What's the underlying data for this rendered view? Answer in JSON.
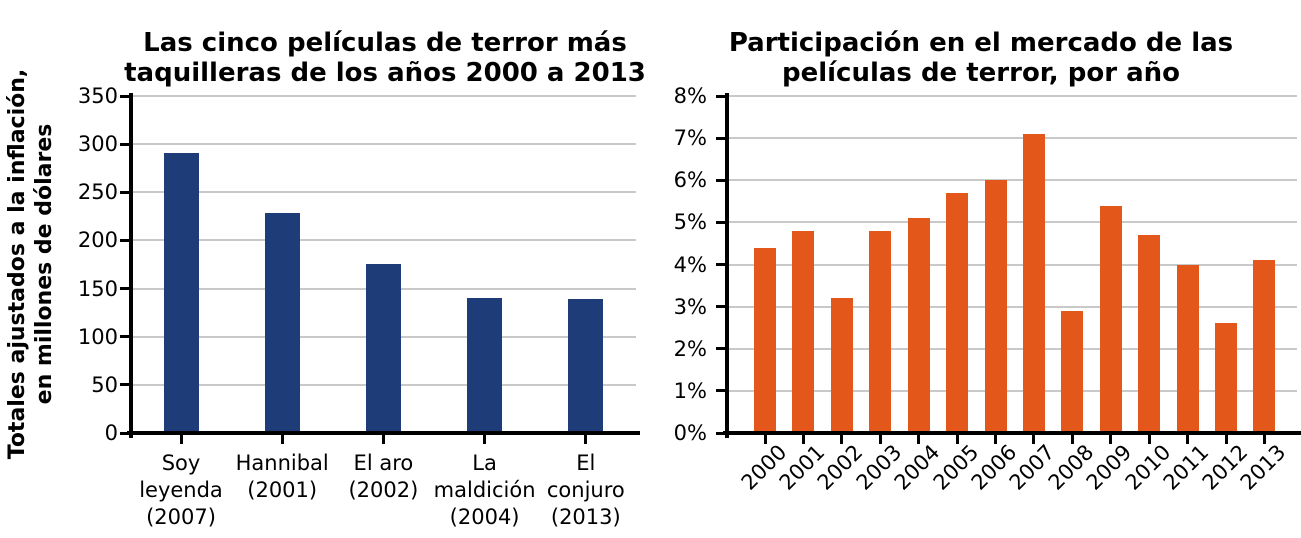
{
  "figure": {
    "background": "#ffffff",
    "text_color": "#000000",
    "grid_color": "#c9c9c9",
    "axis_color": "#000000"
  },
  "chart_data": [
    {
      "type": "bar",
      "title": "Las cinco películas de terror más taquilleras de los años 2000 a 2013",
      "title_lines": [
        "Las cinco películas de terror más",
        "taquilleras de los años 2000 a 2013"
      ],
      "ylabel": "Totales ajustados a la inflación, en millones de dólares",
      "ylabel_lines": [
        "Totales ajustados a la inflación,",
        "en millones de dólares"
      ],
      "xlabel": "",
      "categories": [
        "Soy leyenda (2007)",
        "Hannibal (2001)",
        "El aro (2002)",
        "La maldición (2004)",
        "El conjuro (2013)"
      ],
      "category_label_lines": [
        [
          "Soy",
          "leyenda",
          "(2007)"
        ],
        [
          "Hannibal",
          "(2001)"
        ],
        [
          "El aro",
          "(2002)"
        ],
        [
          "La",
          "maldición",
          "(2004)"
        ],
        [
          "El",
          "conjuro",
          "(2013)"
        ]
      ],
      "values": [
        291,
        228,
        176,
        140,
        139
      ],
      "ylim": [
        0,
        350
      ],
      "yticks": [
        0,
        50,
        100,
        150,
        200,
        250,
        300,
        350
      ],
      "ytick_labels": [
        "0",
        "50",
        "100",
        "150",
        "200",
        "250",
        "300",
        "350"
      ],
      "bar_color": "#1e3c78",
      "grid": true,
      "legend_position": "none",
      "x_tick_rotation": 0
    },
    {
      "type": "bar",
      "title": "Participación en el mercado de las películas de terror, por año",
      "title_lines": [
        "Participación en el mercado de las",
        "películas de terror, por año"
      ],
      "ylabel": "",
      "xlabel": "",
      "categories": [
        "2000",
        "2001",
        "2002",
        "2003",
        "2004",
        "2005",
        "2006",
        "2007",
        "2008",
        "2009",
        "2010",
        "2011",
        "2012",
        "2013"
      ],
      "values": [
        4.4,
        4.8,
        3.2,
        4.8,
        5.1,
        5.7,
        6.0,
        7.1,
        2.9,
        5.4,
        4.7,
        4.0,
        2.6,
        4.1
      ],
      "ylim": [
        0,
        8
      ],
      "yticks": [
        0,
        1,
        2,
        3,
        4,
        5,
        6,
        7,
        8
      ],
      "ytick_labels": [
        "0%",
        "1%",
        "2%",
        "3%",
        "4%",
        "5%",
        "6%",
        "7%",
        "8%"
      ],
      "bar_color": "#e4571a",
      "grid": true,
      "legend_position": "none",
      "x_tick_rotation": 45
    }
  ]
}
